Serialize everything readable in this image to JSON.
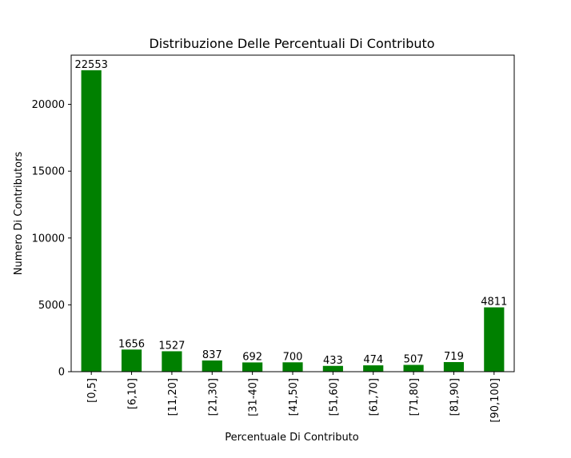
{
  "chart_data": {
    "type": "bar",
    "title": "Distribuzione Delle Percentuali Di Contributo",
    "xlabel": "Percentuale Di Contributo",
    "ylabel": "Numero Di Contributors",
    "categories": [
      "[0,5]",
      "[6,10]",
      "[11,20]",
      "[21,30]",
      "[31-40]",
      "[41,50]",
      "[51,60]",
      "[61,70]",
      "[71,80]",
      "[81,90]",
      "[90,100]"
    ],
    "values": [
      22553,
      1656,
      1527,
      837,
      692,
      700,
      433,
      474,
      507,
      719,
      4811
    ],
    "data_labels": [
      "22553",
      "1656",
      "1527",
      "837",
      "692",
      "700",
      "433",
      "474",
      "507",
      "719",
      "4811"
    ],
    "ylim": [
      0,
      23680
    ],
    "yticks": [
      0,
      5000,
      10000,
      15000,
      20000
    ],
    "ytick_labels": [
      "0",
      "5000",
      "10000",
      "15000",
      "20000"
    ],
    "bar_color": "#008000",
    "grid": false,
    "legend": "none"
  }
}
